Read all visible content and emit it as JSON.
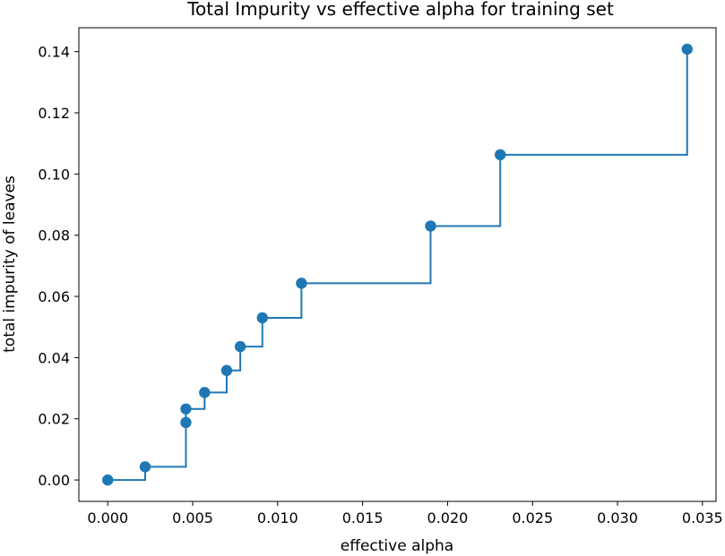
{
  "chart_data": {
    "type": "line",
    "drawstyle": "steps-post",
    "marker": "o",
    "title": "Total Impurity vs effective alpha for training set",
    "xlabel": "effective alpha",
    "ylabel": "total impurity of leaves",
    "xlim": [
      -0.0017,
      0.0358
    ],
    "ylim": [
      -0.007,
      0.1478
    ],
    "xticks": [
      0.0,
      0.005,
      0.01,
      0.015,
      0.02,
      0.025,
      0.03,
      0.035
    ],
    "xtick_labels": [
      "0.000",
      "0.005",
      "0.010",
      "0.015",
      "0.020",
      "0.025",
      "0.030",
      "0.035"
    ],
    "yticks": [
      0.0,
      0.02,
      0.04,
      0.06,
      0.08,
      0.1,
      0.12,
      0.14
    ],
    "ytick_labels": [
      "0.00",
      "0.02",
      "0.04",
      "0.06",
      "0.08",
      "0.10",
      "0.12",
      "0.14"
    ],
    "grid": false,
    "color": "#1f77b4",
    "series": [
      {
        "x": [
          0.0,
          0.0022,
          0.0046,
          0.0046,
          0.0057,
          0.007,
          0.0078,
          0.0091,
          0.0114,
          0.019,
          0.0231,
          0.0341
        ],
        "y": [
          0.0,
          0.0043,
          0.0188,
          0.0232,
          0.0286,
          0.0358,
          0.0436,
          0.053,
          0.0643,
          0.083,
          0.1063,
          0.1408
        ]
      }
    ]
  }
}
